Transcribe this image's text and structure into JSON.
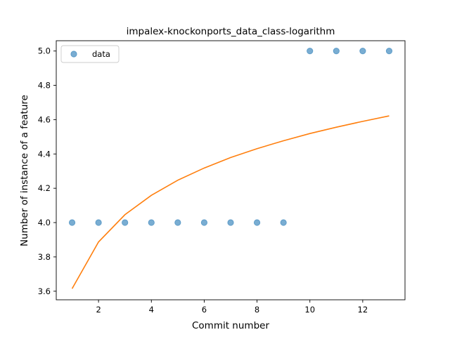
{
  "chart_data": {
    "type": "scatter",
    "title": "impalex-knockonports_data_class-logarithm",
    "xlabel": "Commit number",
    "ylabel": "Number of instance of a feature",
    "xlim": [
      0.4,
      13.6
    ],
    "ylim": [
      3.55,
      5.06
    ],
    "xticks": [
      2,
      4,
      6,
      8,
      10,
      12
    ],
    "yticks": [
      3.6,
      3.8,
      4.0,
      4.2,
      4.4,
      4.6,
      4.8,
      5.0
    ],
    "xtick_labels": [
      "2",
      "4",
      "6",
      "8",
      "10",
      "12"
    ],
    "ytick_labels": [
      "3.6",
      "3.8",
      "4.0",
      "4.2",
      "4.4",
      "4.6",
      "4.8",
      "5.0"
    ],
    "legend_position": "top-left",
    "grid": false,
    "series": [
      {
        "name": "data",
        "kind": "scatter",
        "color": "#1f77b4",
        "x": [
          1,
          2,
          3,
          4,
          5,
          6,
          7,
          8,
          9,
          10,
          11,
          12,
          13
        ],
        "y": [
          4.0,
          4.0,
          4.0,
          4.0,
          4.0,
          4.0,
          4.0,
          4.0,
          4.0,
          5.0,
          5.0,
          5.0,
          5.0
        ]
      },
      {
        "kind": "line",
        "color": "#ff7f0e",
        "x": [
          1,
          2,
          3,
          4,
          5,
          6,
          7,
          8,
          9,
          10,
          11,
          12,
          13
        ],
        "y": [
          3.615,
          3.887,
          4.046,
          4.159,
          4.247,
          4.318,
          4.379,
          4.431,
          4.477,
          4.519,
          4.556,
          4.59,
          4.622
        ]
      }
    ]
  }
}
